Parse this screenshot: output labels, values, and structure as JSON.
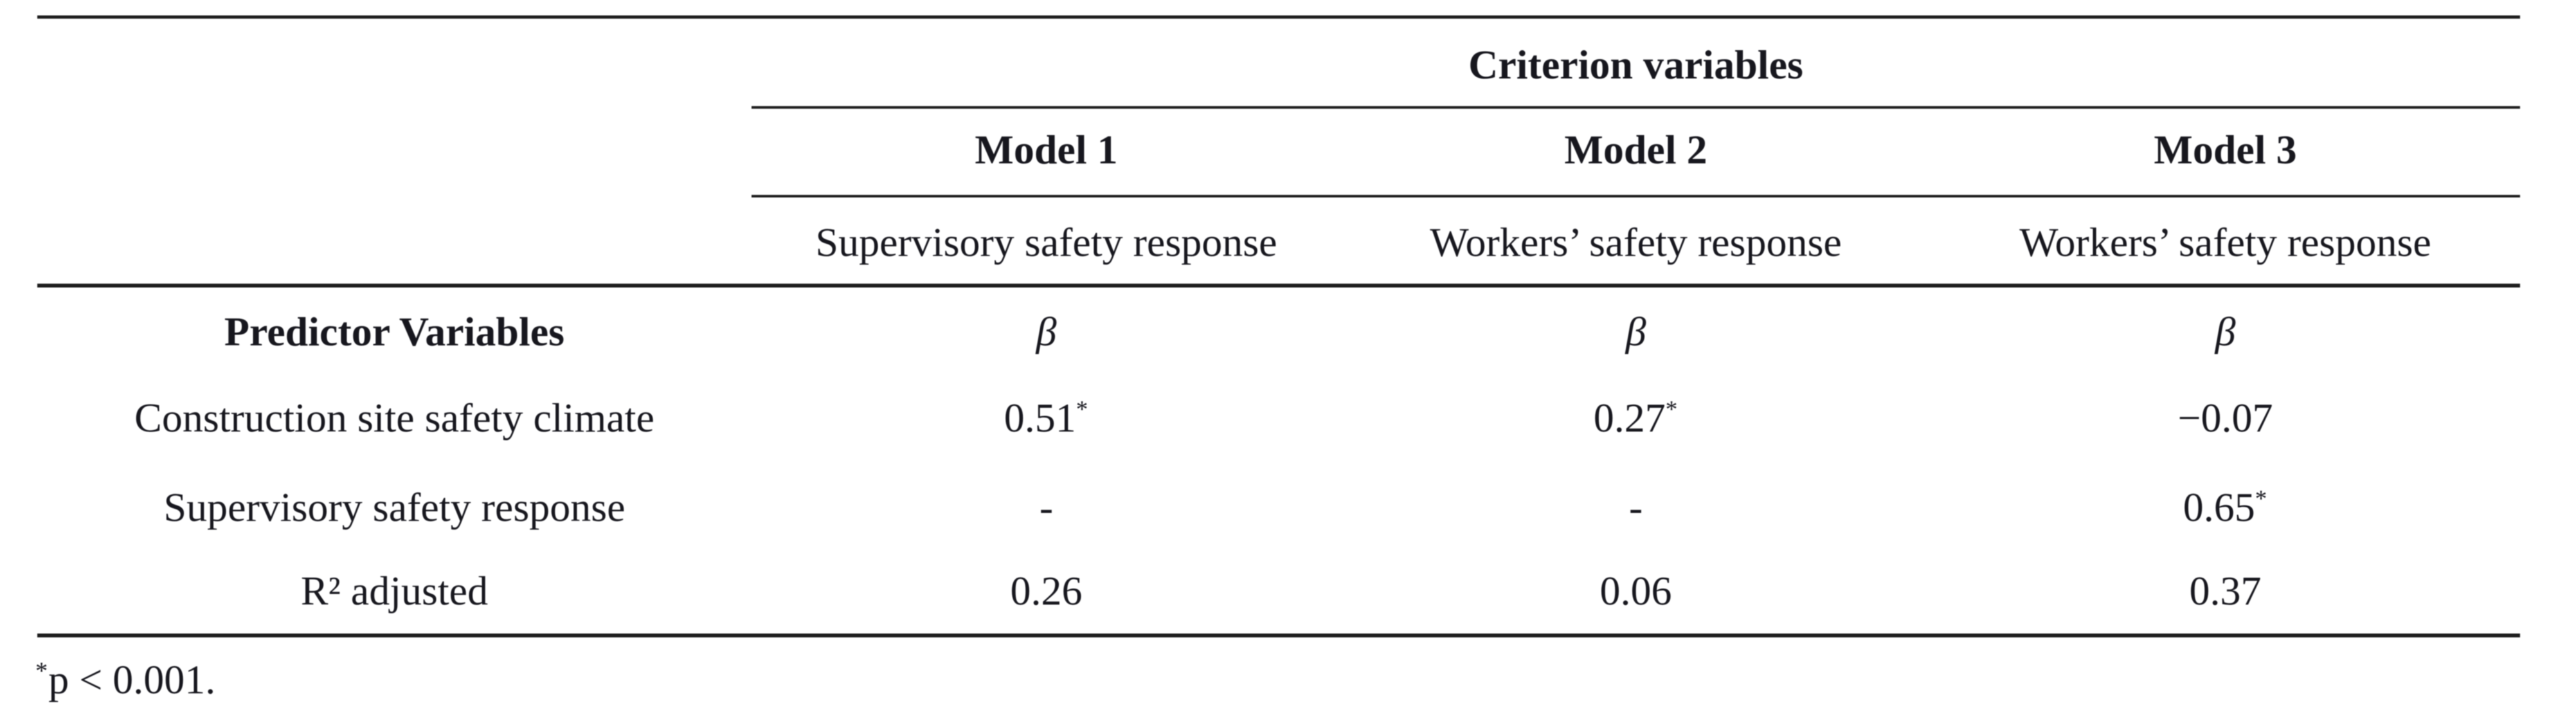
{
  "table": {
    "header": {
      "criterion_label": "Criterion variables",
      "models": [
        {
          "name": "Model 1",
          "criterion": "Supervisory safety response"
        },
        {
          "name": "Model 2",
          "criterion": "Workers’ safety response"
        },
        {
          "name": "Model 3",
          "criterion": "Workers’ safety response"
        }
      ],
      "predictor_col_label": "Predictor Variables",
      "beta_symbol": "β"
    },
    "rows": [
      {
        "label": "Construction site safety climate",
        "values": [
          {
            "v": "0.51",
            "sig": "*"
          },
          {
            "v": "0.27",
            "sig": "*"
          },
          {
            "v": "−0.07",
            "sig": ""
          }
        ]
      },
      {
        "label": "Supervisory safety response",
        "values": [
          {
            "v": "-",
            "sig": ""
          },
          {
            "v": "-",
            "sig": ""
          },
          {
            "v": "0.65",
            "sig": "*"
          }
        ]
      },
      {
        "label": "R² adjusted",
        "values": [
          {
            "v": "0.26",
            "sig": ""
          },
          {
            "v": "0.06",
            "sig": ""
          },
          {
            "v": "0.37",
            "sig": ""
          }
        ]
      }
    ],
    "footnote": {
      "marker": "*",
      "text": "p < 0.001."
    }
  }
}
